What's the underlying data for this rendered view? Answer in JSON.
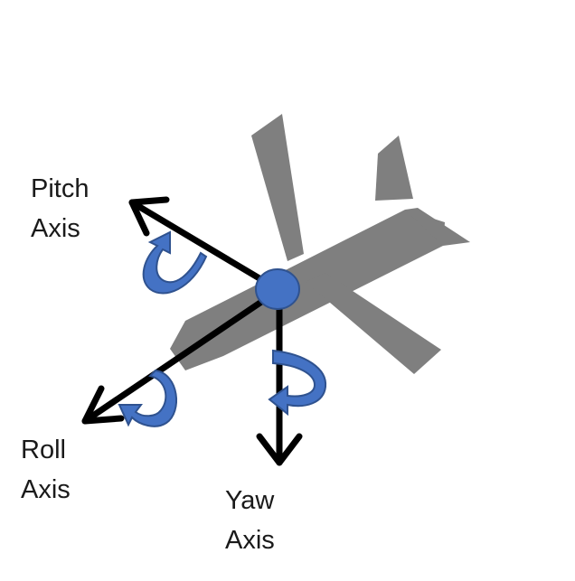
{
  "colors": {
    "airplane": "#7f7f7f",
    "axis": "#000000",
    "rotation_arrow": "#4472c4",
    "rotation_arrow_edge": "#2f528f",
    "center_point": "#4472c4"
  },
  "labels": {
    "pitch": {
      "line1": "Pitch",
      "line2": "Axis"
    },
    "roll": {
      "line1": "Roll",
      "line2": "Axis"
    },
    "yaw": {
      "line1": "Yaw",
      "line2": "Axis"
    }
  }
}
